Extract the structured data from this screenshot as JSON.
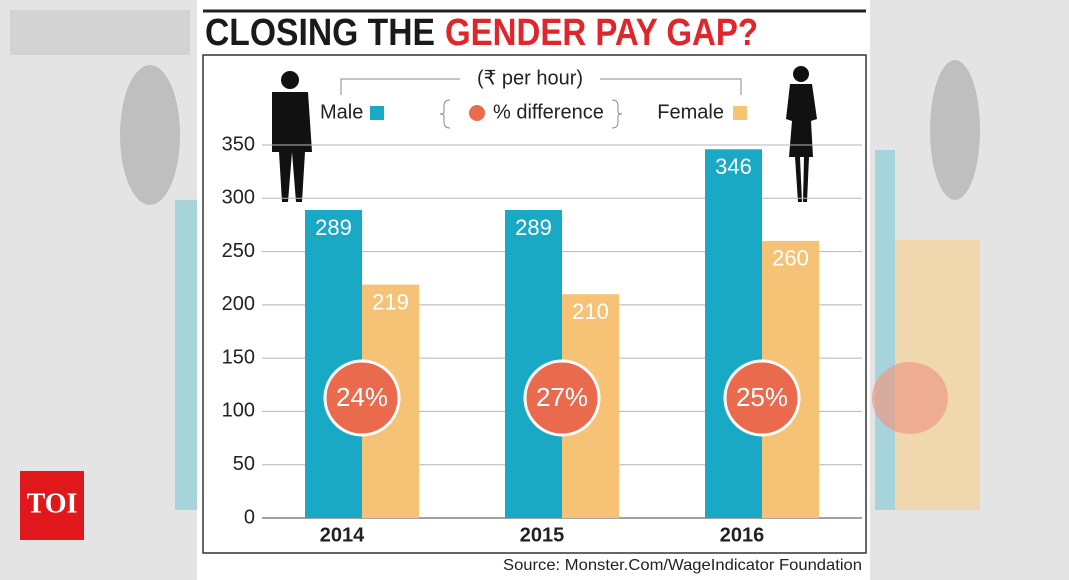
{
  "chart_data": {
    "type": "bar",
    "title": {
      "lead": "CLOSING THE",
      "highlight": "GENDER PAY GAP?"
    },
    "subtitle": "(₹ per hour)",
    "categories": [
      "2014",
      "2015",
      "2016"
    ],
    "series": [
      {
        "name": "Male",
        "color": "#1aa9c4",
        "values": [
          289,
          289,
          346
        ]
      },
      {
        "name": "Female",
        "color": "#f6c275",
        "values": [
          219,
          210,
          260
        ]
      }
    ],
    "difference": {
      "name": "% difference",
      "color": "#ea6a4e",
      "values": [
        24,
        27,
        25
      ],
      "value_labels": [
        "24%",
        "27%",
        "25%"
      ]
    },
    "ylim": [
      0,
      350
    ],
    "yticks": [
      0,
      50,
      100,
      150,
      200,
      250,
      300,
      350
    ],
    "grid": true,
    "legend": "top",
    "source": "Source: Monster.Com/WageIndicator Foundation"
  },
  "logo": "TOI"
}
